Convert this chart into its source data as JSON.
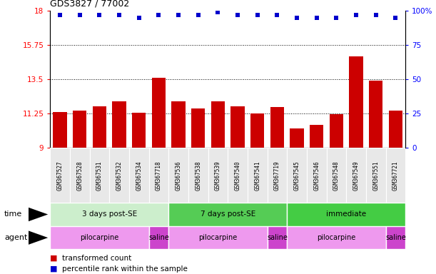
{
  "title": "GDS3827 / 77002",
  "samples": [
    "GSM367527",
    "GSM367528",
    "GSM367531",
    "GSM367532",
    "GSM367534",
    "GSM367718",
    "GSM367536",
    "GSM367538",
    "GSM367539",
    "GSM367540",
    "GSM367541",
    "GSM367719",
    "GSM367545",
    "GSM367546",
    "GSM367548",
    "GSM367549",
    "GSM367551",
    "GSM367721"
  ],
  "bar_values": [
    11.35,
    11.45,
    11.75,
    12.05,
    11.3,
    13.6,
    12.05,
    11.6,
    12.05,
    11.75,
    11.25,
    11.7,
    10.3,
    10.5,
    11.2,
    15.0,
    13.4,
    11.45
  ],
  "percentile_values": [
    97,
    97,
    97,
    97,
    95,
    97,
    97,
    97,
    99,
    97,
    97,
    97,
    95,
    95,
    95,
    97,
    97,
    95
  ],
  "bar_color": "#cc0000",
  "dot_color": "#0000cc",
  "ylim_left": [
    9,
    18
  ],
  "ylim_right": [
    0,
    100
  ],
  "yticks_left": [
    9,
    11.25,
    13.5,
    15.75,
    18
  ],
  "yticks_right": [
    0,
    25,
    50,
    75,
    100
  ],
  "ytick_labels_left": [
    "9",
    "11.25",
    "13.5",
    "15.75",
    "18"
  ],
  "ytick_labels_right": [
    "0",
    "25",
    "50",
    "75",
    "100%"
  ],
  "hlines": [
    11.25,
    13.5,
    15.75
  ],
  "time_groups": [
    {
      "label": "3 days post-SE",
      "start": 0,
      "end": 5,
      "color": "#cceecc"
    },
    {
      "label": "7 days post-SE",
      "start": 6,
      "end": 11,
      "color": "#55cc55"
    },
    {
      "label": "immediate",
      "start": 12,
      "end": 17,
      "color": "#44cc44"
    }
  ],
  "agent_groups": [
    {
      "label": "pilocarpine",
      "start": 0,
      "end": 4,
      "color": "#ee99ee"
    },
    {
      "label": "saline",
      "start": 5,
      "end": 5,
      "color": "#cc44cc"
    },
    {
      "label": "pilocarpine",
      "start": 6,
      "end": 10,
      "color": "#ee99ee"
    },
    {
      "label": "saline",
      "start": 11,
      "end": 11,
      "color": "#cc44cc"
    },
    {
      "label": "pilocarpine",
      "start": 12,
      "end": 16,
      "color": "#ee99ee"
    },
    {
      "label": "saline",
      "start": 17,
      "end": 17,
      "color": "#cc44cc"
    }
  ],
  "time_label": "time",
  "agent_label": "agent",
  "legend_bar_label": "transformed count",
  "legend_dot_label": "percentile rank within the sample",
  "bg_color": "#ffffff",
  "plot_bg": "#ffffff",
  "sample_bg": "#d8d8d8",
  "sample_cell_bg": "#e8e8e8"
}
